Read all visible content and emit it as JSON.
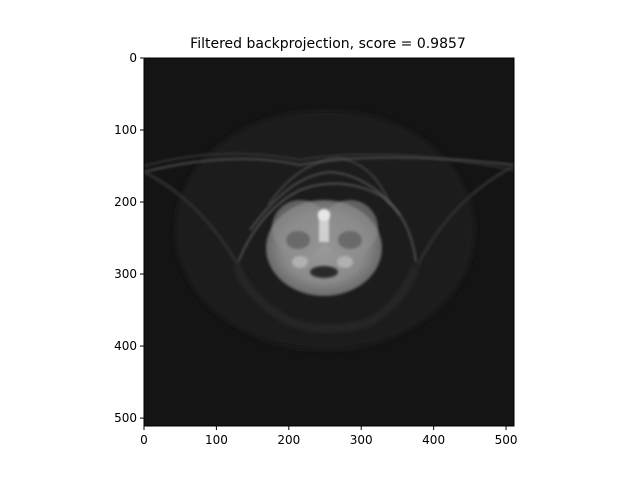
{
  "chart_data": {
    "type": "heatmap",
    "title": "Filtered backprojection, score = 0.9857",
    "xlabel": "",
    "ylabel": "",
    "xlim": [
      0,
      511
    ],
    "ylim": [
      511,
      0
    ],
    "x_ticks": [
      0,
      100,
      200,
      300,
      400,
      500
    ],
    "y_ticks": [
      0,
      100,
      200,
      300,
      400,
      500
    ],
    "grid": false,
    "legend": "none",
    "colormap": "gray",
    "background_color": "#141414"
  }
}
